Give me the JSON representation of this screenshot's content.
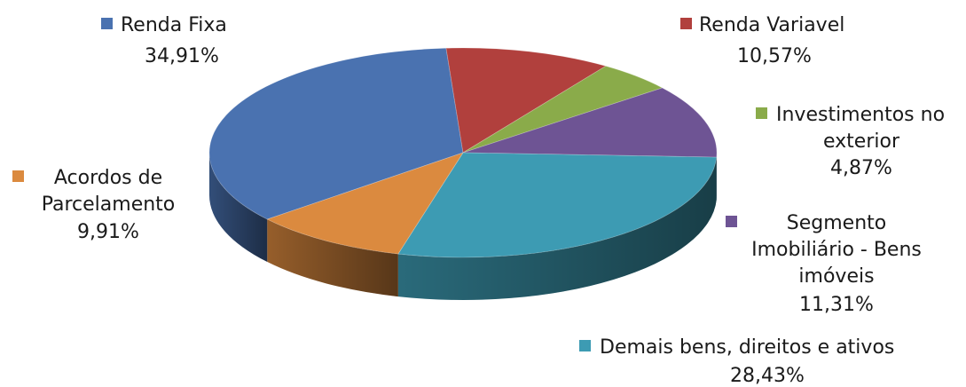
{
  "chart_data": {
    "type": "pie",
    "style": "3d",
    "title": "",
    "slices": [
      {
        "name": "Renda Fixa",
        "value": 34.91,
        "label": "34,91%",
        "color": "#4a72b0"
      },
      {
        "name": "Renda Variavel",
        "value": 10.57,
        "label": "10,57%",
        "color": "#b1403d"
      },
      {
        "name": "Investimentos no exterior",
        "value": 4.87,
        "label": "4,87%",
        "color": "#8aab4a"
      },
      {
        "name": "Segmento Imobiliário - Bens imóveis",
        "value": 11.31,
        "label": "11,31%",
        "color": "#6e5494"
      },
      {
        "name": "Demais bens, direitos e ativos",
        "value": 28.43,
        "label": "28,43%",
        "color": "#3d9bb3"
      },
      {
        "name": "Acordos de Parcelamento",
        "value": 9.91,
        "label": "9,91%",
        "color": "#db8a3f"
      }
    ]
  },
  "legend_labels": {
    "renda_fixa": {
      "lines": [
        "Renda Fixa"
      ],
      "pct": "34,91%"
    },
    "renda_variavel": {
      "lines": [
        "Renda Variavel"
      ],
      "pct": "10,57%"
    },
    "investimentos": {
      "lines": [
        "Investimentos no",
        "exterior"
      ],
      "pct": "4,87%"
    },
    "imobiliario": {
      "lines": [
        "Segmento",
        "Imobiliário - Bens",
        "imóveis"
      ],
      "pct": "11,31%"
    },
    "demais": {
      "lines": [
        "Demais bens, direitos e ativos"
      ],
      "pct": "28,43%"
    },
    "acordos": {
      "lines": [
        "Acordos de",
        "Parcelamento"
      ],
      "pct": "9,91%"
    }
  }
}
